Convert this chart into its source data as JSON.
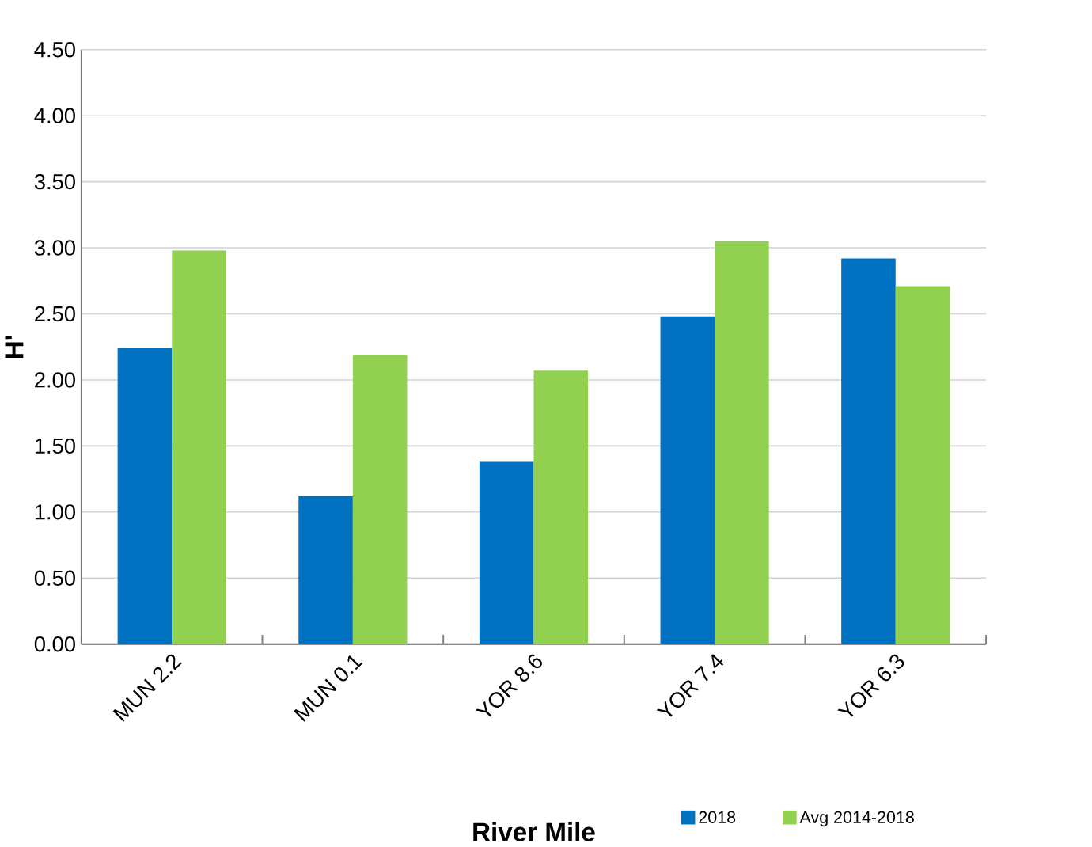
{
  "chart_data": {
    "type": "bar",
    "xlabel": "River Mile",
    "ylabel": "H'",
    "categories": [
      "MUN 2.2",
      "MUN 0.1",
      "YOR 8.6",
      "YOR 7.4",
      "YOR 6.3"
    ],
    "series": [
      {
        "name": "2018",
        "color": "#0070c0",
        "values": [
          2.24,
          1.12,
          1.38,
          2.48,
          2.92
        ]
      },
      {
        "name": "Avg 2014-2018",
        "color": "#92d050",
        "values": [
          2.98,
          2.19,
          2.07,
          3.05,
          2.71
        ]
      }
    ],
    "ylim": [
      0,
      4.5
    ],
    "yticks": [
      {
        "value": 0,
        "label": "0.00"
      },
      {
        "value": 0.5,
        "label": "0.50"
      },
      {
        "value": 1,
        "label": "1.00"
      },
      {
        "value": 1.5,
        "label": "1.50"
      },
      {
        "value": 2,
        "label": "2.00"
      },
      {
        "value": 2.5,
        "label": "2.50"
      },
      {
        "value": 3,
        "label": "3.00"
      },
      {
        "value": 3.5,
        "label": "3.50"
      },
      {
        "value": 4,
        "label": "4.00"
      },
      {
        "value": 4.5,
        "label": "4.50"
      }
    ],
    "grid": "y",
    "legend": "bottom right"
  }
}
